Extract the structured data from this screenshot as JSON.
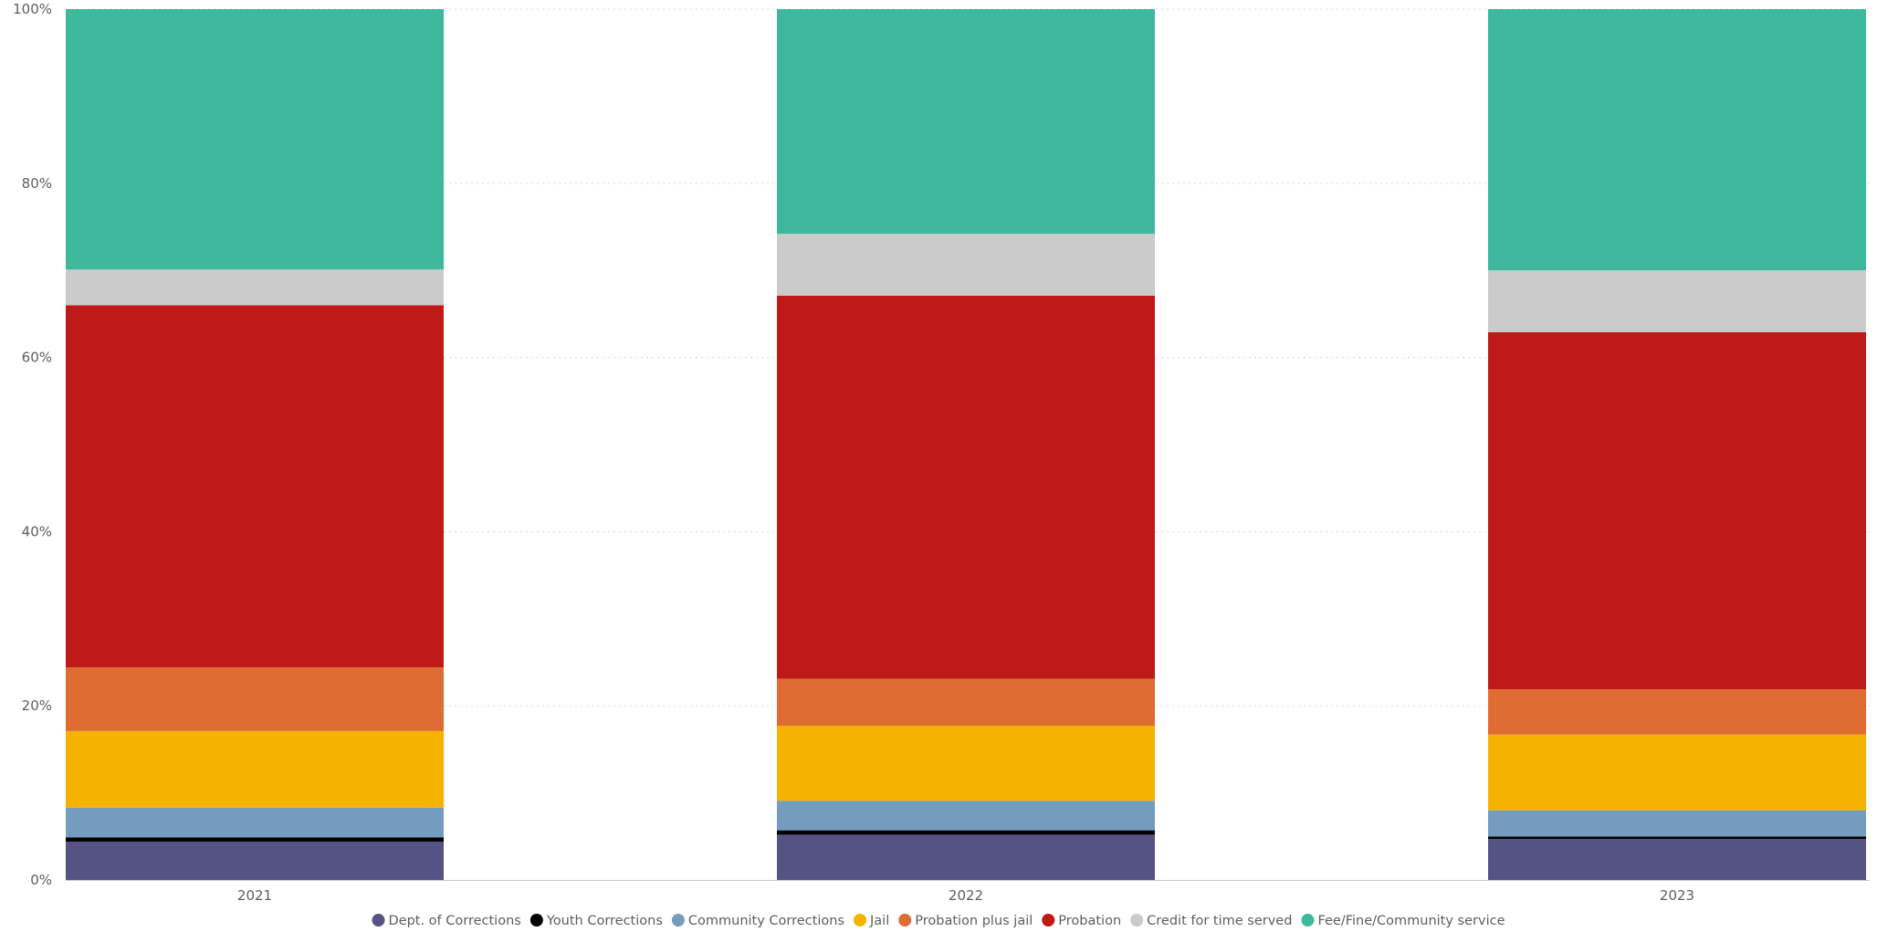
{
  "chart_data": {
    "type": "bar",
    "stacked": true,
    "normalized": true,
    "title": "",
    "xlabel": "",
    "ylabel": "",
    "ylim": [
      0,
      100
    ],
    "y_ticks": [
      "0%",
      "20%",
      "40%",
      "60%",
      "80%",
      "100%"
    ],
    "grid": true,
    "legend_position": "bottom-center",
    "categories": [
      "2021",
      "2022",
      "2023"
    ],
    "series": [
      {
        "name": "Dept. of Corrections",
        "color": "#545383",
        "values": [
          4.4,
          5.2,
          4.7
        ]
      },
      {
        "name": "Youth Corrections",
        "color": "#000000",
        "values": [
          0.5,
          0.5,
          0.3
        ]
      },
      {
        "name": "Community Corrections",
        "color": "#749cbf",
        "values": [
          3.4,
          3.4,
          3.0
        ]
      },
      {
        "name": "Jail",
        "color": "#f5b300",
        "values": [
          8.8,
          8.6,
          8.7
        ]
      },
      {
        "name": "Probation plus jail",
        "color": "#df6c32",
        "values": [
          7.3,
          5.4,
          5.2
        ]
      },
      {
        "name": "Probation",
        "color": "#be1a17",
        "values": [
          41.6,
          44.0,
          41.0
        ]
      },
      {
        "name": "Credit for time served",
        "color": "#cbcbcb",
        "values": [
          4.1,
          7.1,
          7.1
        ]
      },
      {
        "name": "Fee/Fine/Community service",
        "color": "#3fb99d",
        "values": [
          29.9,
          25.8,
          30.0
        ]
      }
    ]
  }
}
